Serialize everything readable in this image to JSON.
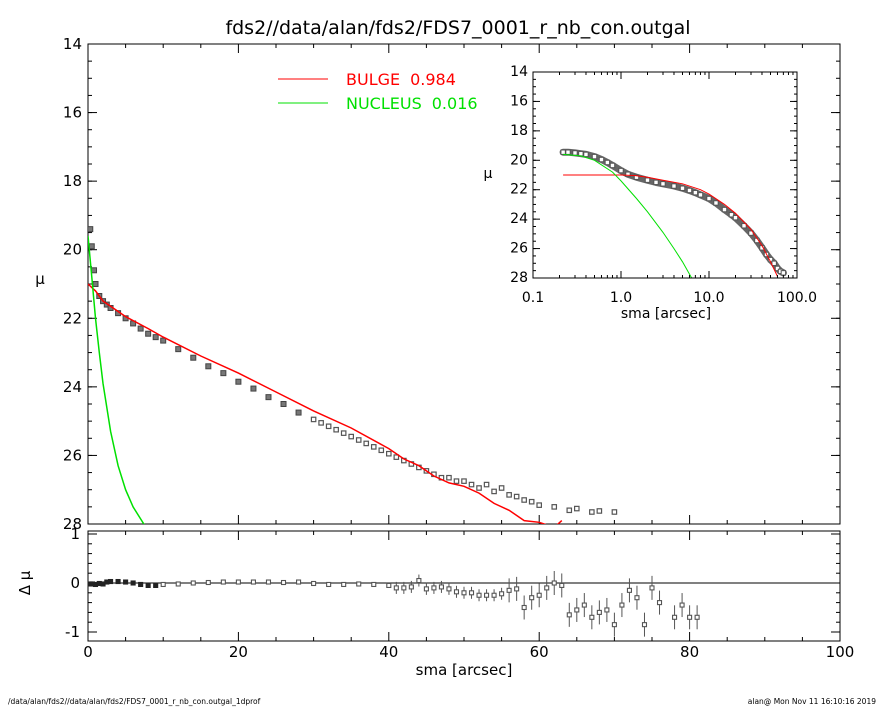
{
  "title": "fds2//data/alan/fds2/FDS7_0001_r_nb_con.outgal",
  "footer_left": "/data/alan/fds2//data/alan/fds2/FDS7_0001_r_nb_con.outgal_1dprof",
  "footer_right": "alan@  Mon Nov 11 16:10:16 2019",
  "colors": {
    "bulge": "#ff0000",
    "nucleus": "#00e000",
    "data": "#555555",
    "axis": "#000000"
  },
  "chart_data": [
    {
      "panel": "main",
      "type": "scatter",
      "ylabel": "μ",
      "xlim": [
        0,
        100
      ],
      "ylim": [
        28,
        14
      ],
      "yticks": [
        "14",
        "16",
        "18",
        "20",
        "22",
        "24",
        "26",
        "28"
      ],
      "legend": [
        {
          "label": "BULGE",
          "value": "0.984"
        },
        {
          "label": "NUCLEUS",
          "value": "0.016"
        }
      ],
      "legend_position": "top-center",
      "series": [
        {
          "name": "BULGE",
          "type": "line",
          "x": [
            0,
            1,
            2,
            3,
            5,
            8,
            10,
            15,
            20,
            25,
            30,
            35,
            40,
            42,
            44,
            46,
            48,
            50,
            52,
            54,
            56,
            58,
            60,
            62,
            63
          ],
          "y": [
            21.0,
            21.2,
            21.5,
            21.65,
            21.95,
            22.3,
            22.55,
            23.1,
            23.6,
            24.15,
            24.7,
            25.2,
            25.8,
            26.1,
            26.3,
            26.6,
            26.8,
            26.9,
            27.1,
            27.4,
            27.6,
            27.9,
            27.95,
            28.1,
            27.9
          ]
        },
        {
          "name": "NUCLEUS",
          "type": "line",
          "x": [
            0,
            0.5,
            1,
            1.5,
            2,
            3,
            4,
            5,
            6,
            7,
            8
          ],
          "y": [
            19.6,
            20.8,
            22.0,
            23.0,
            23.9,
            25.3,
            26.3,
            27.0,
            27.5,
            27.85,
            28.2
          ]
        },
        {
          "name": "data",
          "type": "scatter",
          "x": [
            0.3,
            0.5,
            0.8,
            1,
            1.5,
            2,
            2.5,
            3,
            4,
            5,
            6,
            7,
            8,
            9,
            10,
            12,
            14,
            16,
            18,
            20,
            22,
            24,
            26,
            28,
            30,
            31,
            32,
            33,
            34,
            35,
            36,
            37,
            38,
            39,
            40,
            41,
            42,
            43,
            44,
            45,
            46,
            47,
            48,
            49,
            50,
            51,
            52,
            53,
            54,
            55,
            56,
            57,
            58,
            59,
            60,
            62,
            64,
            65,
            67,
            68,
            70
          ],
          "y": [
            19.4,
            19.9,
            20.6,
            21.0,
            21.35,
            21.5,
            21.6,
            21.7,
            21.85,
            22.0,
            22.15,
            22.3,
            22.45,
            22.55,
            22.65,
            22.9,
            23.15,
            23.4,
            23.6,
            23.85,
            24.05,
            24.3,
            24.5,
            24.75,
            24.95,
            25.05,
            25.15,
            25.25,
            25.35,
            25.45,
            25.55,
            25.65,
            25.75,
            25.85,
            25.95,
            26.05,
            26.15,
            26.25,
            26.35,
            26.45,
            26.55,
            26.65,
            26.65,
            26.75,
            26.75,
            26.85,
            26.95,
            26.85,
            27.05,
            26.95,
            27.15,
            27.2,
            27.3,
            27.35,
            27.45,
            27.5,
            27.6,
            27.55,
            27.65,
            27.62,
            27.65
          ]
        }
      ]
    },
    {
      "panel": "residual",
      "type": "scatter",
      "xlabel": "sma [arcsec]",
      "ylabel": "Δ μ",
      "xlim": [
        0,
        100
      ],
      "ylim": [
        -1.1,
        1.1
      ],
      "xticks": [
        "0",
        "20",
        "40",
        "60",
        "80",
        "100"
      ],
      "yticks": [
        "1",
        "0",
        "-1"
      ],
      "series": [
        {
          "name": "residual",
          "type": "scatter",
          "x": [
            0.3,
            0.6,
            1,
            1.5,
            2,
            2.5,
            3,
            4,
            5,
            6,
            7,
            8,
            9,
            10,
            12,
            14,
            16,
            18,
            20,
            22,
            24,
            26,
            28,
            30,
            32,
            34,
            36,
            38,
            40,
            41,
            42,
            43,
            44,
            45,
            46,
            47,
            48,
            49,
            50,
            51,
            52,
            53,
            54,
            55,
            56,
            57,
            58,
            59,
            60,
            61,
            62,
            63,
            64,
            65,
            66,
            67,
            68,
            69,
            70,
            71,
            72,
            73,
            74,
            75,
            76,
            78,
            79,
            80,
            81
          ],
          "y": [
            -0.02,
            -0.02,
            -0.03,
            -0.01,
            -0.02,
            0.02,
            0.03,
            0.03,
            0.02,
            0.0,
            -0.03,
            -0.05,
            -0.05,
            -0.03,
            -0.02,
            0.0,
            0.01,
            0.02,
            0.02,
            0.02,
            0.02,
            0.01,
            0.02,
            -0.01,
            -0.03,
            -0.03,
            -0.02,
            -0.03,
            -0.05,
            -0.1,
            -0.1,
            -0.08,
            0.05,
            -0.12,
            -0.1,
            -0.08,
            -0.12,
            -0.18,
            -0.2,
            -0.2,
            -0.25,
            -0.25,
            -0.25,
            -0.22,
            -0.15,
            -0.12,
            -0.5,
            -0.3,
            -0.25,
            -0.1,
            0.0,
            -0.05,
            -0.65,
            -0.55,
            -0.45,
            -0.7,
            -0.6,
            -0.55,
            -0.85,
            -0.45,
            -0.15,
            -0.3,
            -0.85,
            -0.1,
            -0.4,
            -0.7,
            -0.45,
            -0.7,
            -0.7
          ]
        }
      ]
    },
    {
      "panel": "inset",
      "type": "scatter",
      "xlabel": "sma [arcsec]",
      "ylabel": "μ",
      "xscale": "log",
      "xlim": [
        0.1,
        100
      ],
      "ylim": [
        28,
        14
      ],
      "xticks": [
        "0.1",
        "1.0",
        "10.0",
        "100.0"
      ],
      "yticks": [
        "14",
        "16",
        "18",
        "20",
        "22",
        "24",
        "26",
        "28"
      ],
      "series": [
        {
          "name": "BULGE",
          "type": "line",
          "x": [
            0.22,
            0.5,
            1.0,
            1.5,
            2,
            3,
            5,
            8,
            10,
            15,
            20,
            30,
            40,
            50,
            60
          ],
          "y": [
            21.0,
            21.0,
            21.0,
            21.05,
            21.15,
            21.35,
            21.6,
            22.0,
            22.3,
            23.0,
            23.6,
            24.7,
            25.8,
            26.9,
            27.9
          ]
        },
        {
          "name": "NUCLEUS",
          "type": "line",
          "x": [
            0.22,
            0.35,
            0.5,
            0.8,
            1.0,
            1.5,
            2,
            3,
            4,
            5,
            6.5
          ],
          "y": [
            19.6,
            19.7,
            20.0,
            20.8,
            21.4,
            22.6,
            23.5,
            24.9,
            26.0,
            26.9,
            28.1
          ]
        },
        {
          "name": "data",
          "type": "scatter",
          "x": [
            0.22,
            0.25,
            0.3,
            0.35,
            0.4,
            0.5,
            0.6,
            0.7,
            0.8,
            1.0,
            1.2,
            1.5,
            2,
            2.5,
            3,
            4,
            5,
            6,
            7,
            8,
            10,
            12,
            15,
            18,
            20,
            25,
            30,
            35,
            40,
            45,
            50,
            55,
            60,
            65,
            70
          ],
          "y": [
            19.45,
            19.45,
            19.5,
            19.55,
            19.6,
            19.75,
            19.95,
            20.15,
            20.35,
            20.7,
            20.95,
            21.15,
            21.35,
            21.5,
            21.6,
            21.75,
            21.9,
            22.05,
            22.2,
            22.35,
            22.6,
            22.9,
            23.35,
            23.7,
            23.9,
            24.45,
            24.95,
            25.45,
            25.95,
            26.4,
            26.75,
            27.0,
            27.35,
            27.55,
            27.65
          ]
        }
      ]
    }
  ]
}
